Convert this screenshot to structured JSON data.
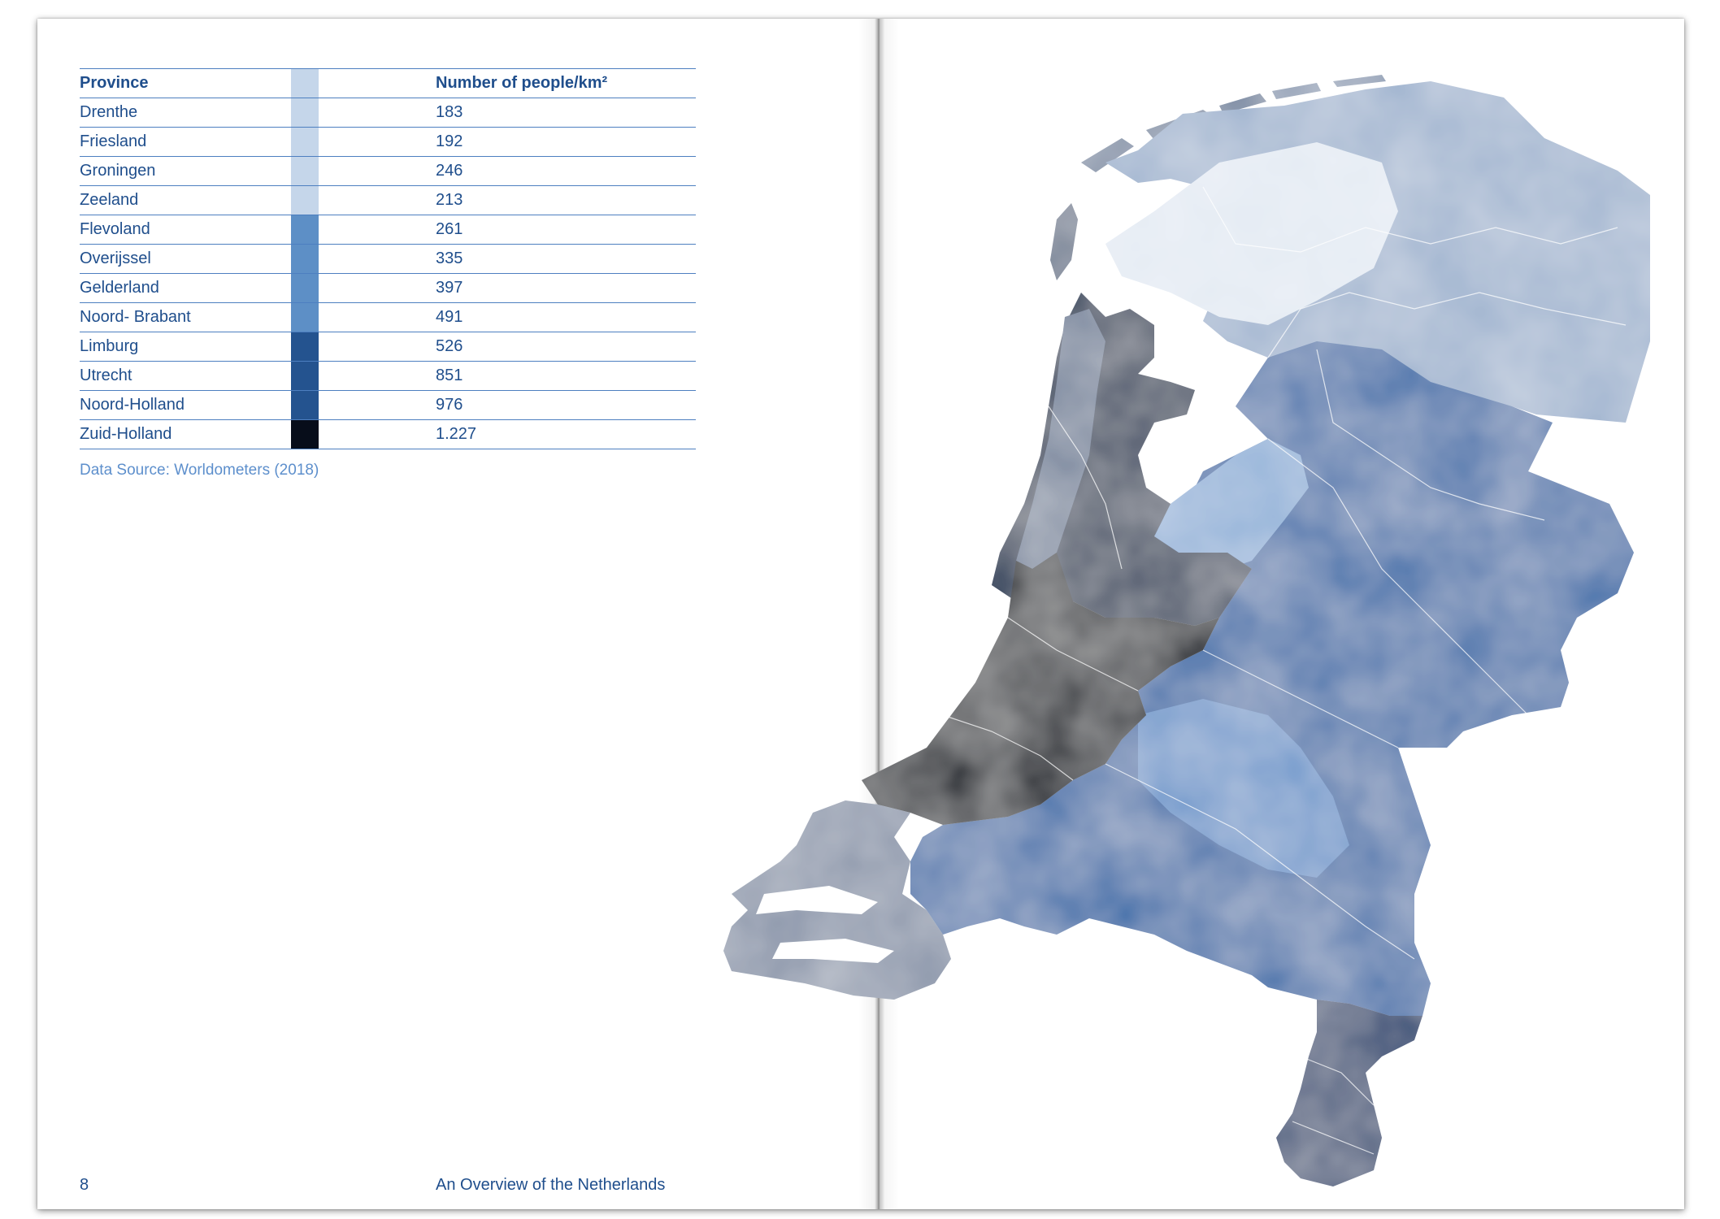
{
  "table": {
    "header": {
      "province": "Province",
      "density": "Number of people/km²"
    },
    "rows": [
      {
        "province": "Drenthe",
        "density": "183",
        "color": "#c5d6ea"
      },
      {
        "province": "Friesland",
        "density": "192",
        "color": "#c5d6ea"
      },
      {
        "province": "Groningen",
        "density": "246",
        "color": "#c5d6ea"
      },
      {
        "province": "Zeeland",
        "density": "213",
        "color": "#c5d6ea"
      },
      {
        "province": "Flevoland",
        "density": "261",
        "color": "#5d8fc6"
      },
      {
        "province": "Overijssel",
        "density": "335",
        "color": "#5d8fc6"
      },
      {
        "province": "Gelderland",
        "density": "397",
        "color": "#5d8fc6"
      },
      {
        "province": "Noord- Brabant",
        "density": "491",
        "color": "#5d8fc6"
      },
      {
        "province": "Limburg",
        "density": "526",
        "color": "#24538f"
      },
      {
        "province": "Utrecht",
        "density": "851",
        "color": "#24538f"
      },
      {
        "province": "Noord-Holland",
        "density": "976",
        "color": "#24538f"
      },
      {
        "province": "Zuid-Holland",
        "density": "1.227",
        "color": "#070d1a"
      }
    ],
    "header_swatch_color": "#c5d6ea"
  },
  "source": "Data Source: Worldometers (2018)",
  "footer": {
    "page_number": "8",
    "title": "An Overview of the Netherlands"
  },
  "map": {
    "regions": [
      {
        "name": "Groningen-Friesland-Drenthe",
        "color": "#9fb3cf"
      },
      {
        "name": "Flevoland-Overijssel-Gelderland-Noord-Brabant",
        "color": "#3f6faa"
      },
      {
        "name": "Utrecht-Noord-Holland",
        "color": "#1d3455"
      },
      {
        "name": "Zuid-Holland",
        "color": "#0f1724"
      },
      {
        "name": "Zeeland",
        "color": "#8793a8"
      },
      {
        "name": "Limburg",
        "color": "#1e3f70"
      },
      {
        "name": "Noord-Holland-coast",
        "color": "#6f7f98"
      }
    ]
  }
}
